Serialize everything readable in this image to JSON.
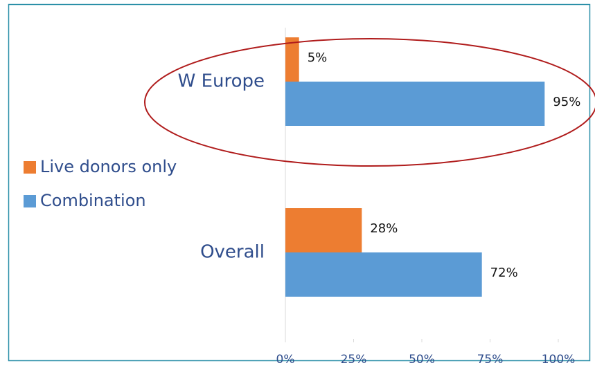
{
  "chart_data": {
    "type": "bar",
    "orientation": "horizontal",
    "categories": [
      "W Europe",
      "Overall"
    ],
    "series": [
      {
        "name": "Live donors only",
        "color": "#ed7d31",
        "values": [
          5,
          28
        ],
        "value_labels": [
          "5%",
          "28%"
        ]
      },
      {
        "name": "Combination",
        "color": "#5b9bd5",
        "values": [
          95,
          72
        ],
        "value_labels": [
          "95%",
          "72%"
        ]
      }
    ],
    "xlim": [
      0,
      100
    ],
    "xticks": [
      {
        "value": 0,
        "label": "0%"
      },
      {
        "value": 25,
        "label": "25%"
      },
      {
        "value": 50,
        "label": "50%"
      },
      {
        "value": 75,
        "label": "75%"
      },
      {
        "value": 100,
        "label": "100%"
      }
    ],
    "legend": "left"
  }
}
